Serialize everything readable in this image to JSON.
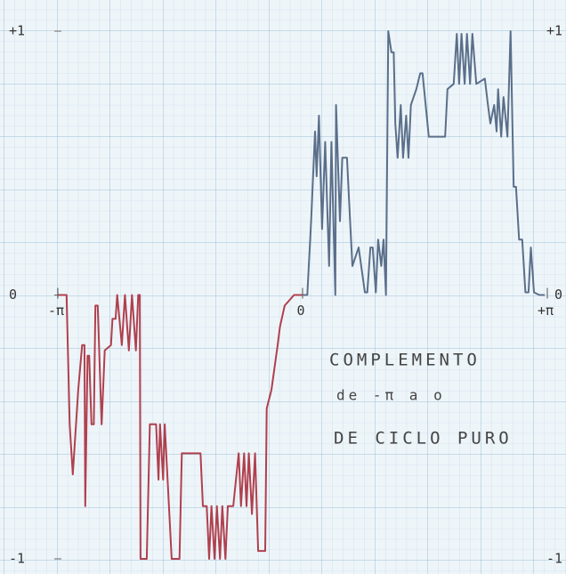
{
  "chart_data": {
    "type": "line",
    "xlim": [
      -3.1416,
      3.1416
    ],
    "xticks": [
      {
        "value": -3.1416,
        "label": "-π"
      },
      0,
      {
        "value": 3.1416,
        "label": "+π"
      }
    ],
    "ylim": [
      -1,
      1
    ],
    "yticks": [
      {
        "value": 1,
        "label": "+1"
      },
      0,
      -1
    ],
    "annotations": [
      "COMPLEMENTO",
      "de -π a o",
      "DE CICLO PURO"
    ],
    "series": [
      {
        "color": "#b0404e",
        "x": [
          -3.14,
          -3.03,
          -2.99,
          -2.95,
          -2.88,
          -2.83,
          -2.8,
          -2.79,
          -2.76,
          -2.74,
          -2.71,
          -2.68,
          -2.66,
          -2.63,
          -2.58,
          -2.54,
          -2.46,
          -2.44,
          -2.4,
          -2.38,
          -2.32,
          -2.28,
          -2.23,
          -2.19,
          -2.14,
          -2.11,
          -2.09,
          -2.08,
          -2.0,
          -1.96,
          -1.88,
          -1.85,
          -1.83,
          -1.79,
          -1.77,
          -1.71,
          -1.68,
          -1.58,
          -1.55,
          -1.31,
          -1.28,
          -1.23,
          -1.2,
          -1.17,
          -1.13,
          -1.1,
          -1.06,
          -1.03,
          -0.99,
          -0.96,
          -0.89,
          -0.82,
          -0.79,
          -0.75,
          -0.72,
          -0.69,
          -0.65,
          -0.61,
          -0.57,
          -0.48,
          -0.46,
          -0.4,
          -0.32,
          -0.29,
          -0.23,
          -0.11,
          0
        ],
        "values": [
          0,
          0,
          -0.49,
          -0.68,
          -0.36,
          -0.19,
          -0.19,
          -0.8,
          -0.23,
          -0.23,
          -0.49,
          -0.49,
          -0.04,
          -0.04,
          -0.49,
          -0.21,
          -0.19,
          -0.09,
          -0.09,
          0,
          -0.19,
          0,
          -0.21,
          0,
          -0.21,
          0,
          0,
          -1,
          -1,
          -0.49,
          -0.49,
          -0.7,
          -0.49,
          -0.7,
          -0.49,
          -0.83,
          -1,
          -1,
          -0.6,
          -0.6,
          -0.8,
          -0.8,
          -1,
          -0.8,
          -1,
          -0.8,
          -1,
          -0.8,
          -1,
          -0.8,
          -0.8,
          -0.6,
          -0.8,
          -0.6,
          -0.8,
          -0.6,
          -0.83,
          -0.6,
          -0.97,
          -0.97,
          -0.43,
          -0.36,
          -0.19,
          -0.12,
          -0.04,
          0,
          0
        ]
      },
      {
        "color": "#5b6f8a",
        "x": [
          0,
          0.06,
          0.11,
          0.16,
          0.18,
          0.21,
          0.25,
          0.29,
          0.34,
          0.37,
          0.42,
          0.43,
          0.48,
          0.51,
          0.57,
          0.61,
          0.64,
          0.72,
          0.8,
          0.83,
          0.87,
          0.9,
          0.94,
          0.97,
          1.01,
          1.04,
          1.07,
          1.1,
          1.14,
          1.17,
          1.19,
          1.22,
          1.26,
          1.29,
          1.33,
          1.36,
          1.39,
          1.46,
          1.51,
          1.54,
          1.62,
          1.83,
          1.86,
          1.94,
          1.98,
          2.01,
          2.04,
          2.08,
          2.11,
          2.15,
          2.18,
          2.23,
          2.34,
          2.38,
          2.41,
          2.46,
          2.49,
          2.51,
          2.55,
          2.58,
          2.63,
          2.67,
          2.71,
          2.74,
          2.78,
          2.82,
          2.86,
          2.9,
          2.93,
          2.97,
          3.04,
          3.11
        ],
        "values": [
          0,
          0,
          0.28,
          0.62,
          0.45,
          0.68,
          0.25,
          0.58,
          0.11,
          0.58,
          0,
          0.72,
          0.28,
          0.52,
          0.52,
          0.28,
          0.11,
          0.18,
          0.01,
          0.01,
          0.18,
          0.18,
          0.01,
          0.21,
          0.11,
          0.21,
          0,
          1.0,
          0.92,
          0.92,
          0.65,
          0.52,
          0.72,
          0.52,
          0.68,
          0.52,
          0.72,
          0.78,
          0.84,
          0.84,
          0.6,
          0.6,
          0.78,
          0.8,
          0.99,
          0.8,
          0.99,
          0.8,
          0.99,
          0.8,
          0.99,
          0.8,
          0.82,
          0.72,
          0.65,
          0.72,
          0.62,
          0.78,
          0.6,
          0.75,
          0.6,
          1.0,
          0.41,
          0.41,
          0.21,
          0.21,
          0.01,
          0.01,
          0.18,
          0.01,
          0,
          0
        ]
      }
    ]
  }
}
